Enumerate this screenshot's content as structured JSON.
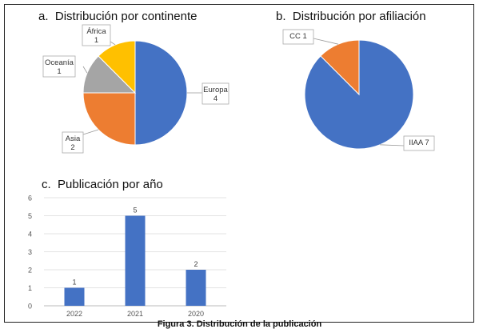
{
  "panels": {
    "a": {
      "letter": "a.",
      "title": "Distribución por continente"
    },
    "b": {
      "letter": "b.",
      "title": "Distribución por afiliación"
    },
    "c": {
      "letter": "c.",
      "title": "Publicación por año"
    }
  },
  "caption": "Figura 3. Distribución de la publicación",
  "colors": {
    "blue": "#4472C4",
    "orange": "#ED7D31",
    "gray": "#A5A5A5",
    "yellow": "#FFC000"
  },
  "chart_data": [
    {
      "type": "pie",
      "title": "Distribución por continente",
      "slices": [
        {
          "label": "Europa",
          "value": 4,
          "color": "#4472C4"
        },
        {
          "label": "Asia",
          "value": 2,
          "color": "#ED7D31"
        },
        {
          "label": "Oceanía",
          "value": 1,
          "color": "#A5A5A5"
        },
        {
          "label": "África",
          "value": 1,
          "color": "#FFC000"
        }
      ]
    },
    {
      "type": "pie",
      "title": "Distribución por afiliación",
      "slices": [
        {
          "label": "IIAA",
          "value": 7,
          "color": "#4472C4"
        },
        {
          "label": "CC",
          "value": 1,
          "color": "#ED7D31"
        }
      ]
    },
    {
      "type": "bar",
      "title": "Publicación por año",
      "categories": [
        "2022",
        "2021",
        "2020"
      ],
      "values": [
        1,
        5,
        2
      ],
      "ylim": [
        0,
        6
      ],
      "yticks": [
        0,
        1,
        2,
        3,
        4,
        5,
        6
      ],
      "grid": true,
      "color": "#4472C4"
    }
  ]
}
